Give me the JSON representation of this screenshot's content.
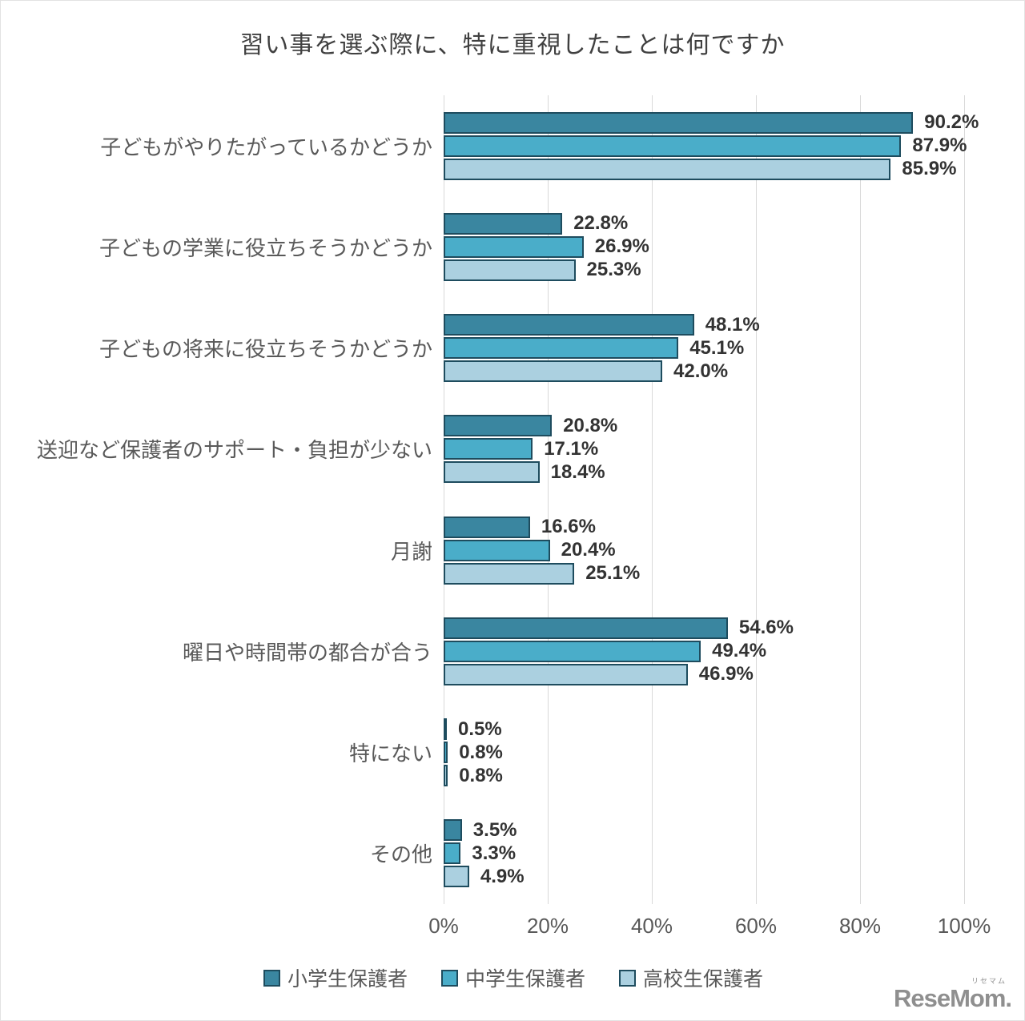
{
  "page": {
    "watermark": {
      "logo": "ReseMom.",
      "ruby": "リセマム"
    }
  },
  "colors": {
    "series": [
      "#3a86a0",
      "#4aadc9",
      "#abd0e0"
    ],
    "bar_border": "#1e4c5e",
    "grid": "#d9d9d9",
    "frame_border": "#e2e2e2",
    "title_text": "#404040",
    "axis_text": "#595959",
    "value_text": "#333333",
    "watermark_text": "#8f8f8f"
  },
  "chart_data": {
    "type": "bar",
    "orientation": "horizontal",
    "title": "習い事を選ぶ際に、特に重視したことは何ですか",
    "categories": [
      "子どもがやりたがっているかどうか",
      "子どもの学業に役立ちそうかどうか",
      "子どもの将来に役立ちそうかどうか",
      "送迎など保護者のサポート・負担が少ない",
      "月謝",
      "曜日や時間帯の都合が合う",
      "特にない",
      "その他"
    ],
    "series": [
      {
        "name": "小学生保護者",
        "color": "#3a86a0",
        "values": [
          90.2,
          22.8,
          48.1,
          20.8,
          16.6,
          54.6,
          0.5,
          3.5
        ]
      },
      {
        "name": "中学生保護者",
        "color": "#4aadc9",
        "values": [
          87.9,
          26.9,
          45.1,
          17.1,
          20.4,
          49.4,
          0.8,
          3.3
        ]
      },
      {
        "name": "高校生保護者",
        "color": "#abd0e0",
        "values": [
          85.9,
          25.3,
          42.0,
          18.4,
          25.1,
          46.9,
          0.8,
          4.9
        ]
      }
    ],
    "xlabel": "",
    "ylabel": "",
    "xlim": [
      0,
      100
    ],
    "x_ticks": [
      "0%",
      "20%",
      "40%",
      "60%",
      "80%",
      "100%"
    ],
    "x_tick_values": [
      0,
      20,
      40,
      60,
      80,
      100
    ],
    "value_label_format": "one-decimal-percent",
    "grid": "vertical",
    "legend_position": "bottom"
  }
}
